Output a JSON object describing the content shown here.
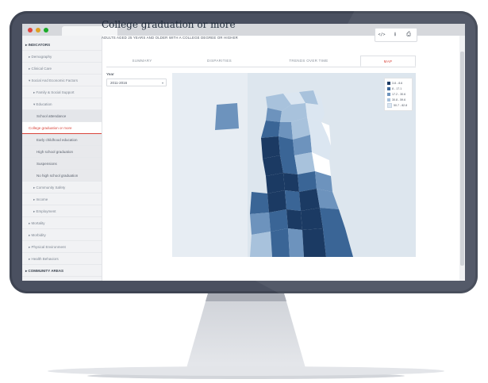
{
  "page": {
    "title": "College graduation or more",
    "subtitle": "ADULTS AGED 25 YEARS AND OLDER WITH A COLLEGE DEGREE OR HIGHER"
  },
  "toolbar": {
    "embed_icon": "code-icon",
    "download_icon": "download-icon",
    "print_icon": "print-icon",
    "embed_glyph": "</>",
    "download_glyph": "⭳",
    "print_glyph": "⎙"
  },
  "sidebar": {
    "items": [
      {
        "label": "▸ INDICATORS",
        "level": "head"
      },
      {
        "label": "▸ Demography",
        "level": "l1"
      },
      {
        "label": "▸ Clinical Care",
        "level": "l1"
      },
      {
        "label": "▾ Social And Economic Factors",
        "level": "l1"
      },
      {
        "label": "▸ Family & Social Support",
        "level": "l2"
      },
      {
        "label": "▾ Education",
        "level": "l2"
      },
      {
        "label": "School attendance",
        "level": "l3"
      },
      {
        "label": "College graduation or more",
        "level": "active"
      },
      {
        "label": "Early childhood education",
        "level": "l4"
      },
      {
        "label": "High school graduation",
        "level": "l4"
      },
      {
        "label": "Suspensions",
        "level": "l4"
      },
      {
        "label": "No high school graduation",
        "level": "l4"
      },
      {
        "label": "▸ Community Safety",
        "level": "l2"
      },
      {
        "label": "▸ Income",
        "level": "l2"
      },
      {
        "label": "▸ Employment",
        "level": "l2"
      },
      {
        "label": "▸ Mortality",
        "level": "l1"
      },
      {
        "label": "▸ Morbidity",
        "level": "l1"
      },
      {
        "label": "▸ Physical Environment",
        "level": "l1"
      },
      {
        "label": "▸ Health Behaviors",
        "level": "l1"
      },
      {
        "label": "▸ COMMUNITY AREAS",
        "level": "head"
      }
    ]
  },
  "tabs": [
    "SUMMARY",
    "DISPARITIES",
    "TRENDS OVER TIME",
    "MAP"
  ],
  "filters": {
    "year_label": "Year",
    "year_value": "2011-2016",
    "caret": "▾"
  },
  "legend": [
    {
      "label": "3.8 - 8.6",
      "color": "#1b3a63"
    },
    {
      "label": "8 - 17.1",
      "color": "#3a6596"
    },
    {
      "label": "17.2 - 30.6",
      "color": "#6d93bd"
    },
    {
      "label": "30.8 - 59.6",
      "color": "#a8c2dc"
    },
    {
      "label": "50.7 - 82.8",
      "color": "#dbe6f1"
    }
  ],
  "colors": {
    "accent": "#d9443b",
    "map_water": "#dde6ee",
    "monitor_bezel": "#4a5060"
  }
}
